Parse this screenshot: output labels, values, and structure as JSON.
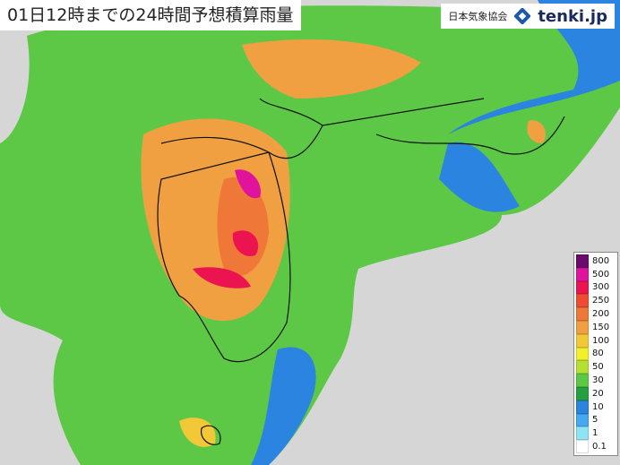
{
  "header": {
    "title": "01日12時までの24時間予想積算雨量",
    "organization": "日本気象協会",
    "brand": "tenki.jp"
  },
  "legend": [
    {
      "label": "800",
      "color": "#6a0a6e"
    },
    {
      "label": "500",
      "color": "#e0149c"
    },
    {
      "label": "300",
      "color": "#ec1450"
    },
    {
      "label": "250",
      "color": "#f04a32"
    },
    {
      "label": "200",
      "color": "#ef7838"
    },
    {
      "label": "150",
      "color": "#f0a040"
    },
    {
      "label": "100",
      "color": "#f2c838"
    },
    {
      "label": "80",
      "color": "#f2f028"
    },
    {
      "label": "50",
      "color": "#b4e034"
    },
    {
      "label": "30",
      "color": "#5cc846"
    },
    {
      "label": "20",
      "color": "#24a040"
    },
    {
      "label": "10",
      "color": "#2a84e0"
    },
    {
      "label": "5",
      "color": "#46a8f2"
    },
    {
      "label": "1",
      "color": "#8ee4f4"
    },
    {
      "label": "0.1",
      "color": "#ffffff"
    }
  ]
}
